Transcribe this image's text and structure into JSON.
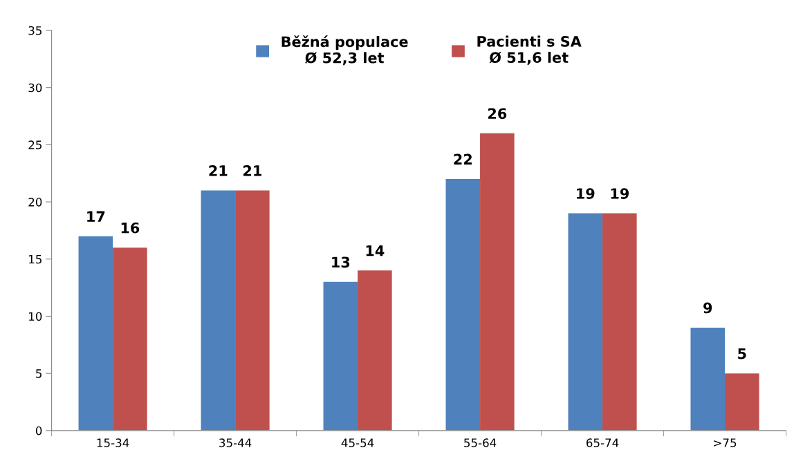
{
  "chart_data": {
    "type": "bar",
    "categories": [
      "15-34",
      "35-44",
      "45-54",
      "55-64",
      "65-74",
      ">75"
    ],
    "series": [
      {
        "name": "Běžná populace\nØ 52,3 let",
        "color": "#4f81bd",
        "values": [
          17,
          21,
          13,
          22,
          19,
          9
        ]
      },
      {
        "name": "Pacienti s SA\nØ 51,6 let",
        "color": "#c0504d",
        "values": [
          16,
          21,
          14,
          26,
          19,
          5
        ]
      }
    ],
    "ylim": [
      0,
      35
    ],
    "yticks": [
      0,
      5,
      10,
      15,
      20,
      25,
      30,
      35
    ],
    "grid": false,
    "legend": "top",
    "data_labels": true
  }
}
